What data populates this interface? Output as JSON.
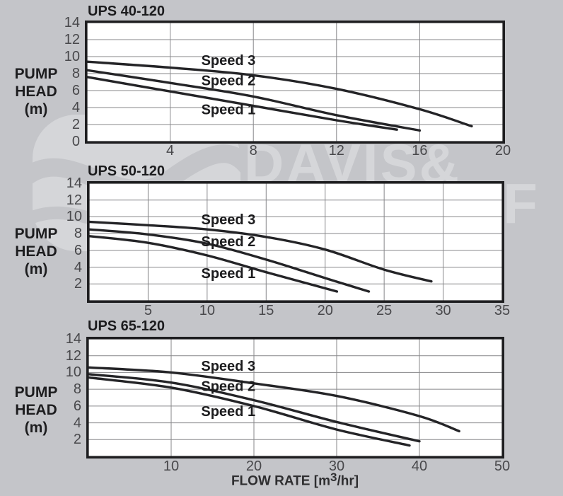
{
  "shared": {
    "ylabel_lines": [
      "PUMP",
      "HEAD",
      "(m)"
    ],
    "xlabel_pre": "FLOW RATE [m",
    "xlabel_sup": "3",
    "xlabel_post": "/hr]"
  },
  "watermark": {
    "small": "e&s",
    "line1": "DAVIS&",
    "line2": "SHIRTLIFF",
    "color": "#d5d6d9"
  },
  "colors": {
    "background": "#c4c5c9",
    "plot_background": "#ffffff",
    "grid": "#87878a",
    "curve": "#242427",
    "border": "#1e1e20",
    "tick_text": "#48484b",
    "label_text": "#1c1c1e"
  },
  "chart_data": [
    {
      "type": "line",
      "title": "UPS 40-120",
      "xlabel": "FLOW RATE [m3/hr]",
      "ylabel": "PUMP HEAD (m)",
      "xlim": [
        0,
        20
      ],
      "ylim": [
        0,
        14
      ],
      "xticks": [
        4,
        8,
        12,
        16,
        20
      ],
      "yticks": [
        14,
        12,
        10,
        8,
        6,
        4,
        2,
        0
      ],
      "grid": true,
      "legend_position": "inline-labels",
      "series": [
        {
          "name": "Speed 3",
          "points": [
            [
              0,
              9.4
            ],
            [
              4,
              8.7
            ],
            [
              8,
              7.8
            ],
            [
              12,
              6.2
            ],
            [
              16,
              3.8
            ],
            [
              18.5,
              1.8
            ]
          ]
        },
        {
          "name": "Speed 2",
          "points": [
            [
              0,
              8.4
            ],
            [
              4,
              6.9
            ],
            [
              8,
              5.3
            ],
            [
              12,
              3.1
            ],
            [
              16,
              1.3
            ]
          ]
        },
        {
          "name": "Speed 1",
          "points": [
            [
              0,
              7.6
            ],
            [
              4,
              5.9
            ],
            [
              8,
              4.2
            ],
            [
              12,
              2.5
            ],
            [
              14.9,
              1.4
            ]
          ]
        }
      ],
      "series_labels": [
        {
          "text": "Speed 3",
          "at": [
            6.8,
            9.6
          ]
        },
        {
          "text": "Speed 2",
          "at": [
            6.8,
            7.2
          ]
        },
        {
          "text": "Speed 1",
          "at": [
            6.8,
            3.8
          ]
        }
      ]
    },
    {
      "type": "line",
      "title": "UPS 50-120",
      "xlabel": "FLOW RATE [m3/hr]",
      "ylabel": "PUMP HEAD (m)",
      "xlim": [
        0,
        35
      ],
      "ylim": [
        0,
        14
      ],
      "xticks": [
        5,
        10,
        15,
        20,
        25,
        30,
        35
      ],
      "yticks": [
        14,
        12,
        10,
        8,
        6,
        4,
        2
      ],
      "grid": true,
      "legend_position": "inline-labels",
      "series": [
        {
          "name": "Speed 3",
          "points": [
            [
              0,
              9.4
            ],
            [
              5,
              9.0
            ],
            [
              10,
              8.5
            ],
            [
              15,
              7.6
            ],
            [
              20,
              6.1
            ],
            [
              25,
              3.7
            ],
            [
              29,
              2.3
            ]
          ]
        },
        {
          "name": "Speed 2",
          "points": [
            [
              0,
              8.5
            ],
            [
              5,
              7.9
            ],
            [
              10,
              6.8
            ],
            [
              15,
              4.9
            ],
            [
              20,
              2.7
            ],
            [
              23.7,
              1.1
            ]
          ]
        },
        {
          "name": "Speed 1",
          "points": [
            [
              0,
              7.7
            ],
            [
              5,
              6.9
            ],
            [
              10,
              5.4
            ],
            [
              15,
              3.4
            ],
            [
              21,
              1.1
            ]
          ]
        }
      ],
      "series_labels": [
        {
          "text": "Speed 3",
          "at": [
            11.8,
            9.7
          ]
        },
        {
          "text": "Speed 2",
          "at": [
            11.8,
            7.1
          ]
        },
        {
          "text": "Speed 1",
          "at": [
            11.8,
            3.3
          ]
        }
      ]
    },
    {
      "type": "line",
      "title": "UPS 65-120",
      "xlabel": "FLOW RATE [m3/hr]",
      "ylabel": "PUMP HEAD (m)",
      "xlim": [
        0,
        50
      ],
      "ylim": [
        0,
        14
      ],
      "xticks": [
        10,
        20,
        30,
        40,
        50
      ],
      "yticks": [
        14,
        12,
        10,
        8,
        6,
        4,
        2
      ],
      "grid": true,
      "legend_position": "inline-labels",
      "series": [
        {
          "name": "Speed 3",
          "points": [
            [
              0,
              10.6
            ],
            [
              10,
              10.0
            ],
            [
              20,
              8.7
            ],
            [
              30,
              7.2
            ],
            [
              40,
              4.8
            ],
            [
              44.8,
              3.0
            ]
          ]
        },
        {
          "name": "Speed 2",
          "points": [
            [
              0,
              9.8
            ],
            [
              10,
              8.8
            ],
            [
              20,
              6.7
            ],
            [
              30,
              4.1
            ],
            [
              40,
              1.8
            ]
          ]
        },
        {
          "name": "Speed 1",
          "points": [
            [
              0,
              9.4
            ],
            [
              10,
              8.2
            ],
            [
              20,
              6.0
            ],
            [
              30,
              3.2
            ],
            [
              38.8,
              1.3
            ]
          ]
        }
      ],
      "series_labels": [
        {
          "text": "Speed 3",
          "at": [
            16.9,
            10.8
          ]
        },
        {
          "text": "Speed 2",
          "at": [
            16.9,
            8.4
          ]
        },
        {
          "text": "Speed 1",
          "at": [
            16.9,
            5.4
          ]
        }
      ]
    }
  ]
}
